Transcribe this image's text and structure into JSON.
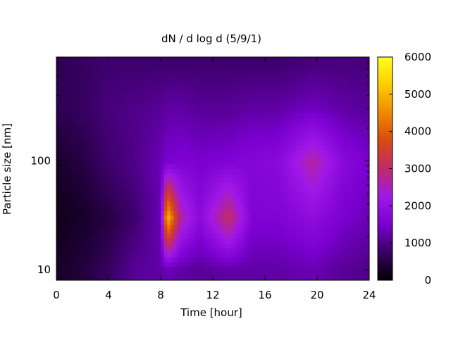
{
  "chart_data": {
    "type": "heatmap",
    "title": "dN / d log d (5/9/1)",
    "xlabel": "Time [hour]",
    "ylabel": "Particle size [nm]",
    "xlim": [
      0,
      24
    ],
    "ylim": [
      8,
      900
    ],
    "y_scale": "log",
    "x_ticks": [
      0,
      4,
      8,
      12,
      16,
      20,
      24
    ],
    "x_tick_labels": [
      "0",
      "4",
      "8",
      "12",
      "16",
      "20",
      "24"
    ],
    "y_ticks": [
      10,
      100
    ],
    "y_tick_labels": [
      "10",
      "100"
    ],
    "colorbar": {
      "min": 0,
      "max": 6000,
      "ticks": [
        0,
        1000,
        2000,
        3000,
        4000,
        5000,
        6000
      ],
      "tick_labels": [
        "0",
        "1000",
        "2000",
        "3000",
        "4000",
        "5000",
        "6000"
      ],
      "colormap": [
        "#000000",
        "#3a0066",
        "#7a00d0",
        "#a018e8",
        "#c02a6a",
        "#d84a10",
        "#f08800",
        "#ffcc00",
        "#ffff20"
      ]
    },
    "time_hours": [
      0,
      2,
      4,
      6,
      8,
      8.5,
      9.5,
      11,
      13.2,
      15,
      17,
      19.7,
      22,
      24
    ],
    "size_nm": [
      10,
      30,
      100,
      300,
      800
    ],
    "values": [
      [
        300,
        450,
        700,
        1100,
        1200,
        1300,
        1200,
        1100,
        1200,
        1200,
        1200,
        1300,
        1100,
        1000
      ],
      [
        200,
        300,
        500,
        800,
        1300,
        5200,
        2700,
        1800,
        3100,
        1600,
        1600,
        1900,
        1500,
        1300
      ],
      [
        300,
        500,
        800,
        1000,
        1300,
        1500,
        1600,
        1500,
        1600,
        1700,
        1800,
        2700,
        1800,
        1500
      ],
      [
        600,
        700,
        900,
        1000,
        1100,
        1200,
        1200,
        1100,
        1100,
        1200,
        1200,
        1400,
        1200,
        1100
      ],
      [
        600,
        700,
        800,
        800,
        800,
        800,
        800,
        800,
        800,
        800,
        800,
        900,
        900,
        900
      ]
    ]
  }
}
